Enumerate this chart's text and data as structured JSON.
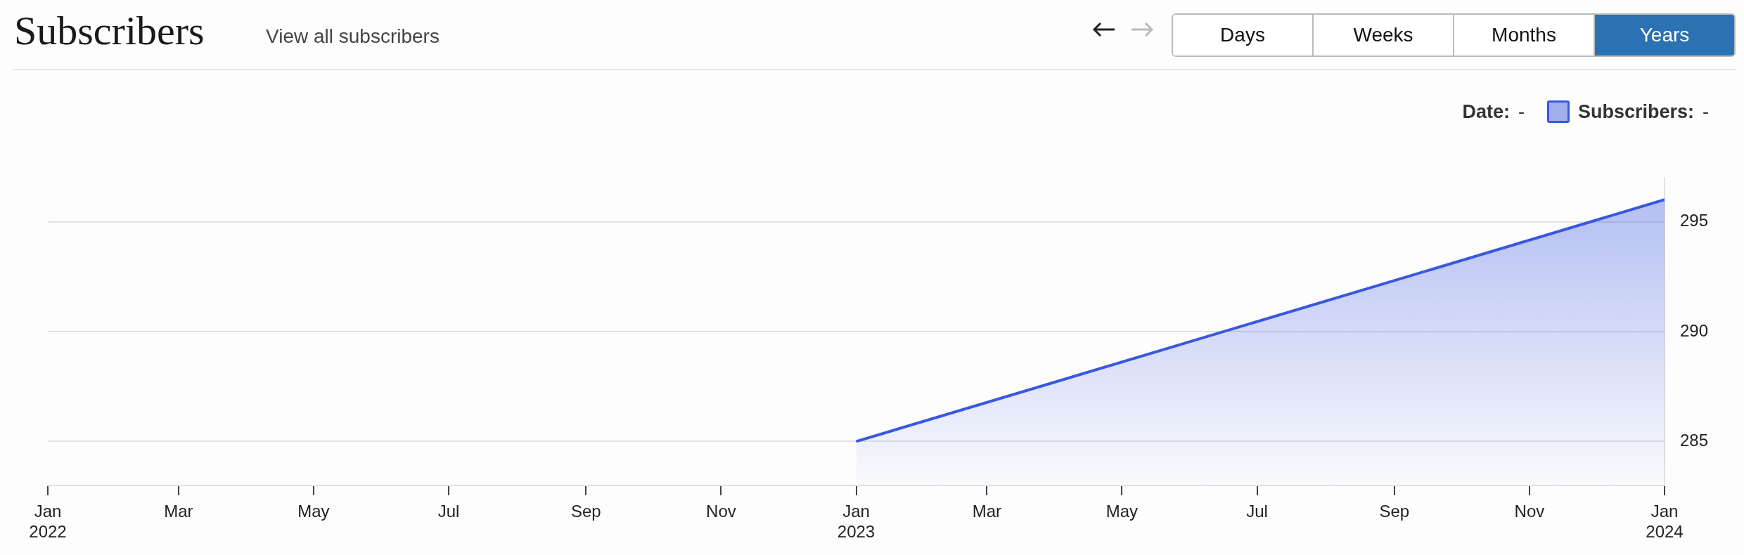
{
  "chart_data": {
    "type": "area",
    "title": "Subscribers",
    "subtitle": "View all subscribers",
    "annotations": [
      "Days",
      "Weeks",
      "Months",
      "Years",
      "Date:",
      "-",
      "-"
    ],
    "series": [
      {
        "name": "Subscribers:",
        "color": "#3a57e0",
        "x": [
          "2023-01",
          "2024-01"
        ],
        "values": [
          285,
          296
        ]
      }
    ],
    "xlim": [
      "2022-01",
      "2024-01"
    ],
    "xticks": [
      {
        "value": "2022-01",
        "label": "Jan\n2022"
      },
      {
        "value": "2022-03",
        "label": "Mar"
      },
      {
        "value": "2022-05",
        "label": "May"
      },
      {
        "value": "2022-07",
        "label": "Jul"
      },
      {
        "value": "2022-09",
        "label": "Sep"
      },
      {
        "value": "2022-11",
        "label": "Nov"
      },
      {
        "value": "2023-01",
        "label": "Jan\n2023"
      },
      {
        "value": "2023-03",
        "label": "Mar"
      },
      {
        "value": "2023-05",
        "label": "May"
      },
      {
        "value": "2023-07",
        "label": "Jul"
      },
      {
        "value": "2023-09",
        "label": "Sep"
      },
      {
        "value": "2023-11",
        "label": "Nov"
      },
      {
        "value": "2024-01",
        "label": "Jan\n2024"
      }
    ],
    "ylim": [
      283,
      297
    ],
    "yticks": [
      285,
      290,
      295
    ],
    "grid": "y",
    "legend": "top right"
  }
}
